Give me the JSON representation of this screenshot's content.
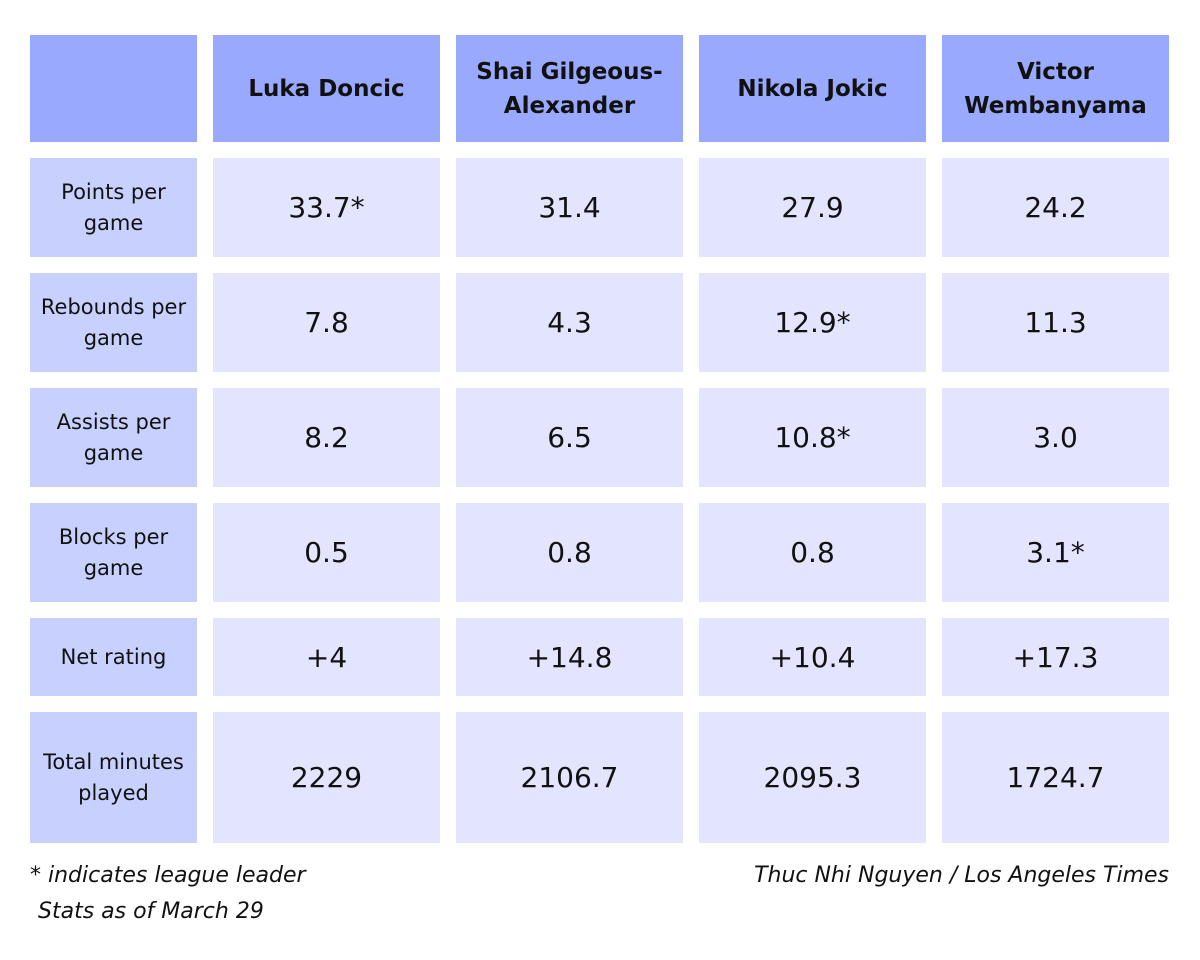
{
  "chart_data": {
    "type": "table",
    "columns": [
      "",
      "Luka Doncic",
      "Shai Gilgeous-Alexander",
      "Nikola Jokic",
      "Victor Wembanyama"
    ],
    "rows": [
      {
        "label": "Points per game",
        "values": [
          "33.7*",
          "31.4",
          "27.9",
          "24.2"
        ]
      },
      {
        "label": "Rebounds per game",
        "values": [
          "7.8",
          "4.3",
          "12.9*",
          "11.3"
        ]
      },
      {
        "label": "Assists per game",
        "values": [
          "8.2",
          "6.5",
          "10.8*",
          "3.0"
        ]
      },
      {
        "label": "Blocks per game",
        "values": [
          "0.5",
          "0.8",
          "0.8",
          "3.1*"
        ]
      },
      {
        "label": "Net rating",
        "values": [
          "+4",
          "+14.8",
          "+10.4",
          "+17.3"
        ]
      },
      {
        "label": "Total minutes played",
        "values": [
          "2229",
          "2106.7",
          "2095.3",
          "1724.7"
        ]
      }
    ]
  },
  "footer": {
    "note": "* indicates league leader",
    "stats_date": "Stats as of March 29",
    "credit": "Thuc Nhi Nguyen / Los Angeles Times"
  },
  "colors": {
    "header_bg": "#99a9fe",
    "row_label_bg": "#c8d0fe",
    "value_bg": "#e2e5fd"
  }
}
